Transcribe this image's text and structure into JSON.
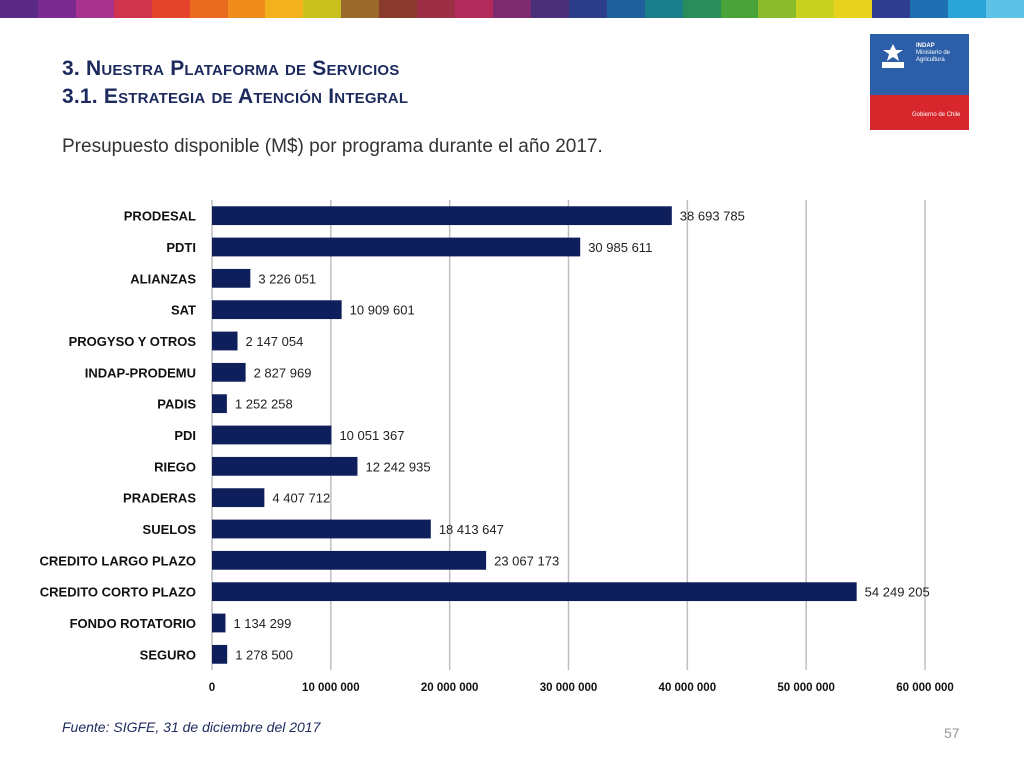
{
  "slide": {
    "title_line1": "3. Nuestra Plataforma de Servicios",
    "title_line2": "3.1. Estrategia de Atención Integral",
    "source": "Fuente: SIGFE, 31 de diciembre del 2017",
    "page_number": "57"
  },
  "logo": {
    "org": "INDAP",
    "subtitle_1": "Ministerio de",
    "subtitle_2": "Agricultura",
    "gobierno": "Gobierno de Chile",
    "colors": {
      "blue": "#2c5fa8",
      "red": "#d7262c"
    }
  },
  "stripe_colors": [
    "#5b2a86",
    "#7a2b8f",
    "#a7338f",
    "#d1344f",
    "#e4432c",
    "#e96a1f",
    "#f08c1a",
    "#f3b21b",
    "#c9c21e",
    "#9a6a2c",
    "#8b3a2e",
    "#9c2f45",
    "#b32b5c",
    "#7d2b6e",
    "#4b2f78",
    "#2c3d8a",
    "#1f5f9c",
    "#1a7f8a",
    "#2a8c5a",
    "#4aa23a",
    "#8bbb2a",
    "#c8d21f",
    "#e6d21f",
    "#2f3c8f",
    "#1f6fb2",
    "#2aa3d6",
    "#5cc3e6"
  ],
  "chart_data": {
    "type": "bar",
    "orientation": "horizontal",
    "title": "Presupuesto disponible (M$) por programa durante el año 2017.",
    "categories": [
      "PRODESAL",
      "PDTI",
      "ALIANZAS",
      "SAT",
      "PROGYSO Y OTROS",
      "INDAP-PRODEMU",
      "PADIS",
      "PDI",
      "RIEGO",
      "PRADERAS",
      "SUELOS",
      "CREDITO LARGO PLAZO",
      "CREDITO CORTO PLAZO",
      "FONDO ROTATORIO",
      "SEGURO"
    ],
    "values": [
      38693785,
      30985611,
      3226051,
      10909601,
      2147054,
      2827969,
      1252258,
      10051367,
      12242935,
      4407712,
      18413647,
      23067173,
      54249205,
      1134299,
      1278500
    ],
    "value_labels": [
      "38 693 785",
      "30 985 611",
      "3 226 051",
      "10 909 601",
      "2 147 054",
      "2 827 969",
      "1 252 258",
      "10 051 367",
      "12 242 935",
      "4 407 712",
      "18 413 647",
      "23 067 173",
      "54 249 205",
      "1 134 299",
      "1 278 500"
    ],
    "xlim": [
      0,
      60000000
    ],
    "x_ticks": [
      0,
      10000000,
      20000000,
      30000000,
      40000000,
      50000000,
      60000000
    ],
    "x_tick_labels": [
      "0",
      "10 000 000",
      "20 000 000",
      "30 000 000",
      "40 000 000",
      "50 000 000",
      "60 000 000"
    ],
    "grid": true,
    "bar_color": "#0f1f5c",
    "grid_color": "#bfbfbf",
    "legend": "none"
  }
}
